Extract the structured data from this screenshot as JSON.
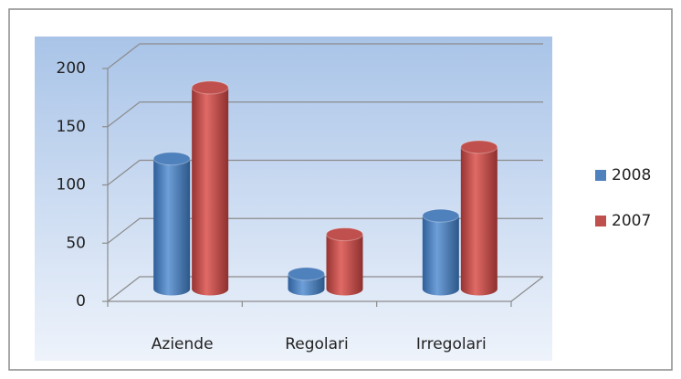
{
  "chart_data": {
    "type": "bar3d",
    "categories": [
      "Aziende",
      "Regolari",
      "Irregolari"
    ],
    "series": [
      {
        "name": "2008",
        "color": "#4f81bd",
        "values": [
          112,
          13,
          63
        ]
      },
      {
        "name": "2007",
        "color": "#c0504d",
        "values": [
          173,
          47,
          122
        ]
      }
    ],
    "ylim": [
      0,
      200
    ],
    "yticks": [
      0,
      50,
      100,
      150,
      200
    ],
    "grid": true,
    "legend": "right"
  }
}
